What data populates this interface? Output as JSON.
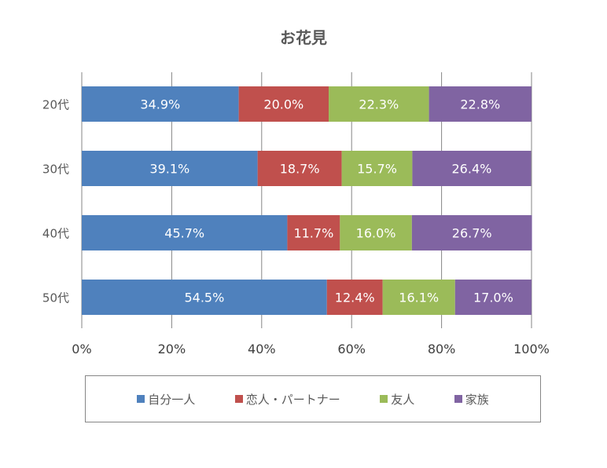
{
  "chart_data": {
    "type": "bar",
    "orientation": "horizontal",
    "stacked": "percent",
    "title": "お花見",
    "categories": [
      "20代",
      "30代",
      "40代",
      "50代"
    ],
    "series": [
      {
        "name": "自分一人",
        "color": "#4F81BD",
        "values": [
          34.9,
          39.1,
          45.7,
          54.5
        ],
        "labels": [
          "34.9%",
          "39.1%",
          "45.7%",
          "54.5%"
        ]
      },
      {
        "name": "恋人・パートナー",
        "color": "#C0504D",
        "values": [
          20.0,
          18.7,
          11.7,
          12.4
        ],
        "labels": [
          "20.0%",
          "18.7%",
          "11.7%",
          "12.4%"
        ]
      },
      {
        "name": "友人",
        "color": "#9BBB59",
        "values": [
          22.3,
          15.7,
          16.0,
          16.1
        ],
        "labels": [
          "22.3%",
          "15.7%",
          "16.0%",
          "16.1%"
        ]
      },
      {
        "name": "家族",
        "color": "#8064A2",
        "values": [
          22.8,
          26.4,
          26.7,
          17.0
        ],
        "labels": [
          "22.8%",
          "26.4%",
          "26.7%",
          "17.0%"
        ]
      }
    ],
    "xticks": [
      "0%",
      "20%",
      "40%",
      "60%",
      "80%",
      "100%"
    ],
    "xlim": [
      0,
      100
    ],
    "grid": true,
    "legend": "bottom"
  }
}
